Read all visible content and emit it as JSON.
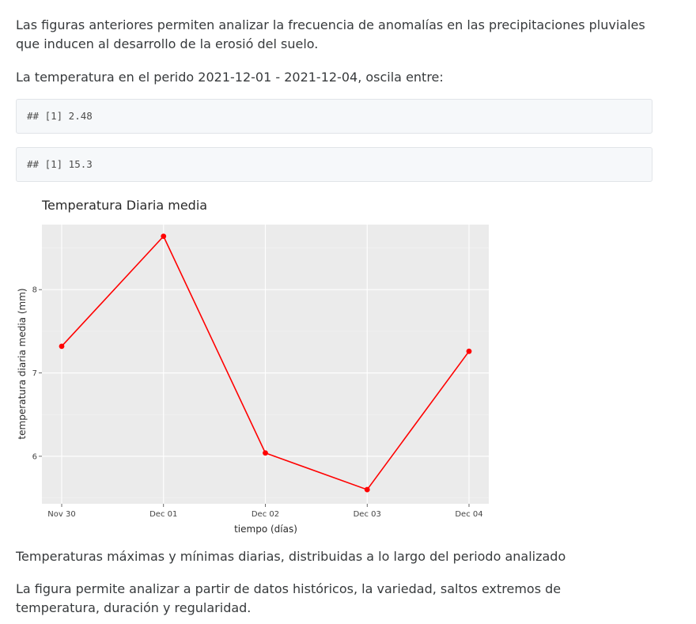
{
  "paragraphs": {
    "intro": "Las figuras anteriores permiten analizar la frecuencia de anomalías en las precipitaciones pluviales que inducen al desarrollo de la erosió del suelo.",
    "temp_range": "La temperatura en el perido 2021-12-01 - 2021-12-04, oscila entre:",
    "caption": "Temperaturas máximas y mínimas diarias, distribuidas a lo largo del periodo analizado",
    "conclusion": "La figura permite analizar a partir de datos históricos, la variedad, saltos extremos de temperatura, duración y regularidad."
  },
  "code_outputs": {
    "min": "## [1] 2.48",
    "max": "## [1] 15.3"
  },
  "chart_data": {
    "type": "line",
    "title": "Temperatura Diaria media",
    "xlabel": "tiempo (días)",
    "ylabel": "temperatura diaria media (mm)",
    "categories": [
      "Nov 30",
      "Dec 01",
      "Dec 02",
      "Dec 03",
      "Dec 04"
    ],
    "x": [
      "2021-11-30",
      "2021-12-01",
      "2021-12-02",
      "2021-12-03",
      "2021-12-04"
    ],
    "series": [
      {
        "values": [
          7.32,
          8.64,
          6.04,
          5.6,
          7.26
        ],
        "color": "#ff0000"
      }
    ],
    "y_ticks": [
      6,
      7,
      8
    ],
    "y_tick_labels": [
      "6",
      "7",
      "8"
    ],
    "ylim": [
      5.43,
      8.78
    ],
    "grid": true,
    "background": "#ebebeb",
    "legend": "none"
  }
}
